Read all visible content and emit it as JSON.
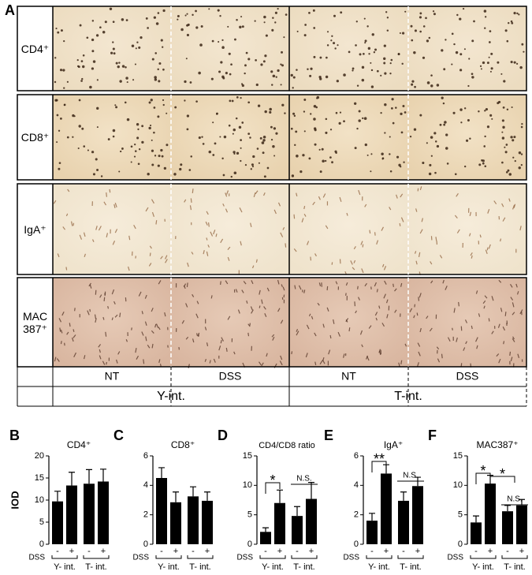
{
  "panel_a": {
    "label": "A",
    "rows": [
      "CD4⁺",
      "CD8⁺",
      "IgA⁺",
      "MAC 387⁺"
    ],
    "treatments": [
      "NT",
      "DSS",
      "NT",
      "DSS"
    ],
    "groups": [
      "Y-int.",
      "T-int."
    ]
  },
  "chart_data": [
    {
      "type": "bar",
      "label": "B",
      "title": "CD4⁺",
      "y_label": "IOD",
      "factor": "DSS",
      "categories": [
        "-",
        "+",
        "-",
        "+"
      ],
      "groups": [
        "Y- int.",
        "T- int."
      ],
      "values": [
        9.7,
        13.3,
        13.7,
        14.2
      ],
      "errors": [
        2.3,
        3.0,
        3.2,
        2.8
      ],
      "color": "#000000",
      "ylim": [
        0,
        20
      ],
      "yticks": [
        0,
        5,
        10,
        15,
        20
      ],
      "annotations": []
    },
    {
      "type": "bar",
      "label": "C",
      "title": "CD8⁺",
      "factor": "DSS",
      "categories": [
        "-",
        "+",
        "-",
        "+"
      ],
      "groups": [
        "Y- int.",
        "T- int."
      ],
      "values": [
        4.5,
        2.85,
        3.25,
        2.95
      ],
      "errors": [
        0.7,
        0.7,
        0.65,
        0.6
      ],
      "color": "#000000",
      "ylim": [
        0,
        6
      ],
      "yticks": [
        0,
        2,
        4,
        6
      ],
      "annotations": []
    },
    {
      "type": "bar",
      "label": "D",
      "title": "CD4/CD8 ratio",
      "factor": "DSS",
      "categories": [
        "-",
        "+",
        "-",
        "+"
      ],
      "groups": [
        "Y- int.",
        "T- int."
      ],
      "values": [
        2.1,
        7.0,
        4.8,
        7.7
      ],
      "errors": [
        0.7,
        2.2,
        1.6,
        2.8
      ],
      "color": "#000000",
      "ylim": [
        0,
        15
      ],
      "yticks": [
        0,
        5,
        10,
        15
      ],
      "annotations": [
        "*",
        "N.S."
      ]
    },
    {
      "type": "bar",
      "label": "E",
      "title": "IgA⁺",
      "factor": "DSS",
      "categories": [
        "-",
        "+",
        "-",
        "+"
      ],
      "groups": [
        "Y- int.",
        "T- int."
      ],
      "values": [
        1.6,
        4.8,
        2.95,
        3.95
      ],
      "errors": [
        0.5,
        0.6,
        0.6,
        0.6
      ],
      "color": "#000000",
      "ylim": [
        0,
        6
      ],
      "yticks": [
        0,
        2,
        4,
        6
      ],
      "annotations": [
        "**",
        "N.S."
      ]
    },
    {
      "type": "bar",
      "label": "F",
      "title": "MAC387⁺",
      "factor": "DSS",
      "categories": [
        "-",
        "+",
        "-",
        "+"
      ],
      "groups": [
        "Y- int.",
        "T- int."
      ],
      "values": [
        3.7,
        10.3,
        5.6,
        6.6
      ],
      "errors": [
        1.1,
        1.4,
        1.0,
        1.0
      ],
      "color": "#000000",
      "ylim": [
        0,
        15
      ],
      "yticks": [
        0,
        5,
        10,
        15
      ],
      "annotations": [
        "*",
        "*",
        "N.S."
      ]
    }
  ]
}
